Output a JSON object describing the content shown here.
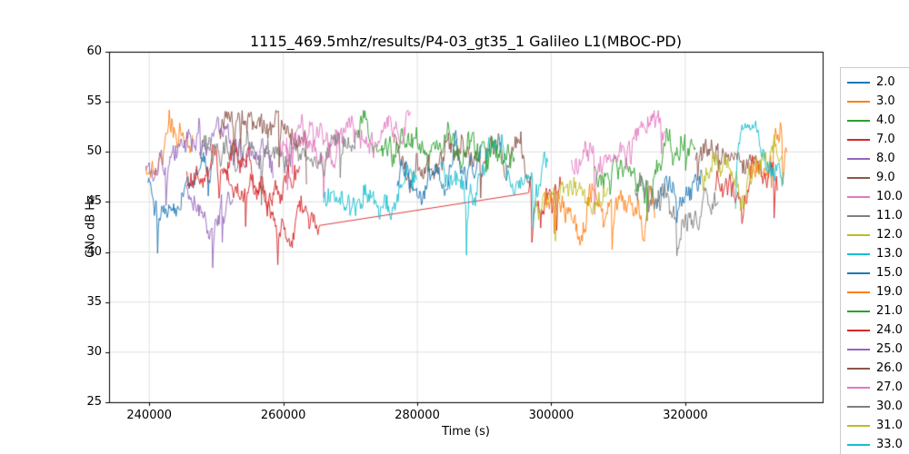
{
  "title": "1115_469.5mhz/results/P4-03_gt35_1 Galileo L1(MBOC-PD)",
  "xlabel": "Time (s)",
  "ylabel": "CNo dB Hz",
  "chart_data": {
    "type": "line",
    "title": "1115_469.5mhz/results/P4-03_gt35_1 Galileo L1(MBOC-PD)",
    "xlabel": "Time (s)",
    "ylabel": "CNo dB Hz",
    "xlim": [
      234000,
      340500
    ],
    "ylim": [
      25,
      60
    ],
    "xticks": [
      240000,
      260000,
      280000,
      300000,
      320000
    ],
    "yticks": [
      25,
      30,
      35,
      40,
      45,
      50,
      55,
      60
    ],
    "grid": true,
    "legend_position": "right-outside",
    "series": [
      {
        "name": "2.0",
        "color": "#1f77b4",
        "segments": [
          [
            239800,
            249500,
            47.5,
            48.5
          ],
          [
            315500,
            322500,
            45.5,
            47.5
          ]
        ]
      },
      {
        "name": "3.0",
        "color": "#ff7f0e",
        "segments": [
          [
            239500,
            246500,
            49.5,
            50.5
          ],
          [
            329500,
            335200,
            48.5,
            49.5
          ]
        ]
      },
      {
        "name": "4.0",
        "color": "#2ca02c",
        "segments": [
          [
            271000,
            286000,
            50.5,
            51.5
          ],
          [
            306500,
            321500,
            47.5,
            50.5
          ]
        ]
      },
      {
        "name": "7.0",
        "color": "#d62728",
        "connect": true,
        "segments": [
          [
            245500,
            265500,
            48.0,
            44.0
          ],
          [
            296500,
            301500,
            45.5,
            46.0
          ]
        ]
      },
      {
        "name": "8.0",
        "color": "#9467bd",
        "segments": [
          [
            239500,
            258500,
            48.0,
            50.0
          ]
        ]
      },
      {
        "name": "9.0",
        "color": "#8c564b",
        "segments": [
          [
            276500,
            297000,
            50.5,
            50.0
          ]
        ]
      },
      {
        "name": "10.0",
        "color": "#e377c2",
        "segments": [
          [
            260500,
            279000,
            51.5,
            50.5
          ],
          [
            303000,
            317000,
            48.5,
            51.0
          ]
        ]
      },
      {
        "name": "11.0",
        "color": "#7f7f7f",
        "segments": [
          [
            247500,
            271000,
            49.5,
            51.5
          ]
        ]
      },
      {
        "name": "12.0",
        "color": "#bcbd22",
        "segments": [
          [
            297500,
            308500,
            43.0,
            46.0
          ]
        ]
      },
      {
        "name": "13.0",
        "color": "#17becf",
        "segments": [
          [
            266000,
            280000,
            45.0,
            47.5
          ],
          [
            283500,
            299500,
            48.5,
            48.5
          ]
        ]
      },
      {
        "name": "15.0",
        "color": "#1f77b4",
        "segments": [
          [
            277000,
            289500,
            47.0,
            48.5
          ]
        ]
      },
      {
        "name": "19.0",
        "color": "#ff7f0e",
        "segments": [
          [
            299000,
            315500,
            45.5,
            44.0
          ]
        ],
        "dips": [
          [
            313800,
            5.5
          ]
        ]
      },
      {
        "name": "21.0",
        "color": "#2ca02c",
        "segments": [
          [
            285500,
            294500,
            49.5,
            50.0
          ]
        ]
      },
      {
        "name": "24.0",
        "color": "#d62728",
        "segments": [
          [
            251500,
            262500,
            47.5,
            46.5
          ],
          [
            324500,
            333800,
            46.0,
            47.0
          ]
        ],
        "dips": [
          [
            328500,
            3.0
          ]
        ]
      },
      {
        "name": "25.0",
        "color": "#9467bd",
        "segments": [
          [
            245500,
            252500,
            46.0,
            46.5
          ]
        ]
      },
      {
        "name": "26.0",
        "color": "#8c564b",
        "segments": [
          [
            250500,
            263500,
            51.5,
            52.0
          ],
          [
            321500,
            330500,
            48.5,
            49.5
          ]
        ]
      },
      {
        "name": "27.0",
        "color": "#e377c2",
        "segments": [
          [
            259500,
            268500,
            51.0,
            52.0
          ]
        ]
      },
      {
        "name": "30.0",
        "color": "#7f7f7f",
        "segments": [
          [
            312500,
            325000,
            46.5,
            44.5
          ]
        ],
        "dips": [
          [
            324000,
            3.5
          ]
        ]
      },
      {
        "name": "31.0",
        "color": "#bcbd22",
        "segments": [
          [
            322500,
            334500,
            47.5,
            49.0
          ]
        ]
      },
      {
        "name": "33.0",
        "color": "#17becf",
        "segments": [
          [
            327500,
            334800,
            49.0,
            50.0
          ]
        ]
      }
    ]
  }
}
